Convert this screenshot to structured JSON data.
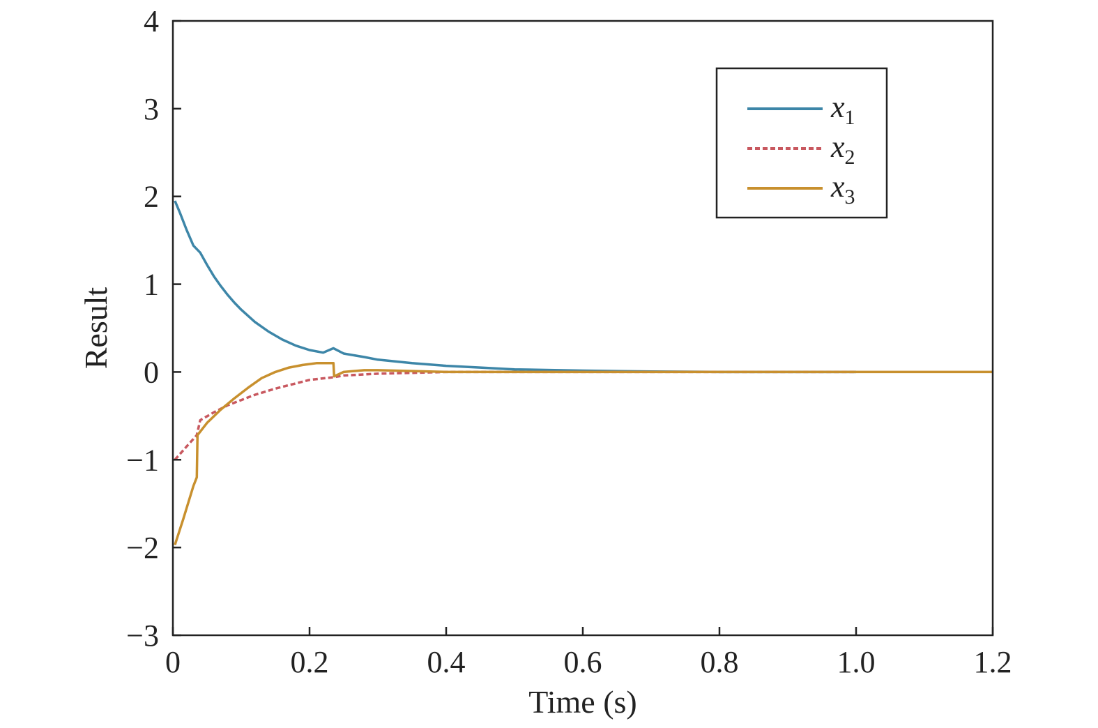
{
  "chart_data": {
    "type": "line",
    "title": "",
    "xlabel": "Time (s)",
    "ylabel": "Result",
    "xlim": [
      0,
      1.2
    ],
    "ylim": [
      -3,
      4
    ],
    "xticks": [
      0,
      0.2,
      0.4,
      0.6,
      0.8,
      1.0,
      1.2
    ],
    "xtick_labels": [
      "0",
      "0.2",
      "0.4",
      "0.6",
      "0.8",
      "1.0",
      "1.2"
    ],
    "yticks": [
      -3,
      -2,
      -1,
      0,
      1,
      2,
      3,
      4
    ],
    "ytick_labels": [
      "−3",
      "−2",
      "−1",
      "0",
      "1",
      "2",
      "3",
      "4"
    ],
    "grid": false,
    "legend_position": "top-right",
    "series": [
      {
        "name": "x",
        "subscript": "1",
        "color": "#3d86a8",
        "dash": "solid",
        "points": [
          [
            0.003,
            1.95
          ],
          [
            0.01,
            1.82
          ],
          [
            0.02,
            1.62
          ],
          [
            0.03,
            1.44
          ],
          [
            0.04,
            1.36
          ],
          [
            0.05,
            1.22
          ],
          [
            0.06,
            1.09
          ],
          [
            0.07,
            0.98
          ],
          [
            0.08,
            0.88
          ],
          [
            0.09,
            0.79
          ],
          [
            0.1,
            0.71
          ],
          [
            0.12,
            0.57
          ],
          [
            0.14,
            0.46
          ],
          [
            0.16,
            0.37
          ],
          [
            0.18,
            0.3
          ],
          [
            0.2,
            0.25
          ],
          [
            0.22,
            0.22
          ],
          [
            0.235,
            0.27
          ],
          [
            0.25,
            0.21
          ],
          [
            0.28,
            0.17
          ],
          [
            0.3,
            0.14
          ],
          [
            0.35,
            0.1
          ],
          [
            0.4,
            0.07
          ],
          [
            0.45,
            0.05
          ],
          [
            0.5,
            0.03
          ],
          [
            0.6,
            0.015
          ],
          [
            0.7,
            0.005
          ],
          [
            0.8,
            0.0
          ],
          [
            1.0,
            0.0
          ]
        ]
      },
      {
        "name": "x",
        "subscript": "2",
        "color": "#c8585f",
        "dash": "dashed",
        "points": [
          [
            0.003,
            -1.0
          ],
          [
            0.02,
            -0.85
          ],
          [
            0.035,
            -0.72
          ],
          [
            0.04,
            -0.55
          ],
          [
            0.06,
            -0.46
          ],
          [
            0.08,
            -0.38
          ],
          [
            0.1,
            -0.32
          ],
          [
            0.12,
            -0.26
          ],
          [
            0.15,
            -0.19
          ],
          [
            0.18,
            -0.13
          ],
          [
            0.2,
            -0.09
          ],
          [
            0.235,
            -0.06
          ],
          [
            0.25,
            -0.04
          ],
          [
            0.3,
            -0.02
          ],
          [
            0.35,
            -0.01
          ],
          [
            0.4,
            0.0
          ],
          [
            0.6,
            0.0
          ],
          [
            1.0,
            0.0
          ]
        ]
      },
      {
        "name": "x",
        "subscript": "3",
        "color": "#c8902e",
        "dash": "solid",
        "points": [
          [
            0.003,
            -1.97
          ],
          [
            0.015,
            -1.68
          ],
          [
            0.03,
            -1.3
          ],
          [
            0.035,
            -1.2
          ],
          [
            0.036,
            -0.72
          ],
          [
            0.05,
            -0.58
          ],
          [
            0.07,
            -0.43
          ],
          [
            0.09,
            -0.3
          ],
          [
            0.11,
            -0.18
          ],
          [
            0.13,
            -0.07
          ],
          [
            0.15,
            0.0
          ],
          [
            0.17,
            0.05
          ],
          [
            0.19,
            0.08
          ],
          [
            0.21,
            0.1
          ],
          [
            0.235,
            0.1
          ],
          [
            0.236,
            -0.05
          ],
          [
            0.25,
            0.0
          ],
          [
            0.28,
            0.02
          ],
          [
            0.3,
            0.02
          ],
          [
            0.4,
            0.0
          ],
          [
            0.6,
            0.0
          ],
          [
            0.8,
            0.0
          ],
          [
            1.2,
            0.0
          ]
        ]
      }
    ]
  }
}
